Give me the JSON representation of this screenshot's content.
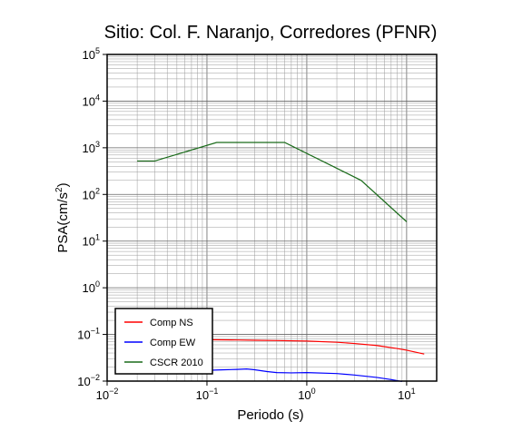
{
  "chart_data": {
    "type": "line",
    "title": "Sitio: Col. F. Naranjo, Corredores (PFNR)",
    "xlabel": "Periodo (s)",
    "ylabel_base": "PSA(cm/s",
    "ylabel_sup": "2",
    "ylabel_close": ")",
    "x_scale": "log",
    "y_scale": "log",
    "xlim": [
      0.01,
      20
    ],
    "ylim": [
      0.01,
      100000
    ],
    "grid": true,
    "legend_position": "bottom-left",
    "x_ticks": [
      {
        "value": 0.01,
        "base": "10",
        "exp": "−2"
      },
      {
        "value": 0.1,
        "base": "10",
        "exp": "−1"
      },
      {
        "value": 1,
        "base": "10",
        "exp": "0"
      },
      {
        "value": 10,
        "base": "10",
        "exp": "1"
      }
    ],
    "y_ticks": [
      {
        "value": 0.01,
        "base": "10",
        "exp": "−2"
      },
      {
        "value": 0.1,
        "base": "10",
        "exp": "−1"
      },
      {
        "value": 1,
        "base": "10",
        "exp": "0"
      },
      {
        "value": 10,
        "base": "10",
        "exp": "1"
      },
      {
        "value": 100,
        "base": "10",
        "exp": "2"
      },
      {
        "value": 1000,
        "base": "10",
        "exp": "3"
      },
      {
        "value": 10000,
        "base": "10",
        "exp": "4"
      },
      {
        "value": 100000,
        "base": "10",
        "exp": "5"
      }
    ],
    "series": [
      {
        "name": "Comp NS",
        "color": "#ff0000",
        "x": [
          0.02,
          0.03,
          0.05,
          0.1,
          0.2,
          0.3,
          0.5,
          1,
          2,
          3,
          5,
          8,
          10,
          15
        ],
        "y": [
          0.08,
          0.08,
          0.078,
          0.077,
          0.076,
          0.075,
          0.074,
          0.072,
          0.068,
          0.064,
          0.058,
          0.05,
          0.046,
          0.038
        ]
      },
      {
        "name": "Comp EW",
        "color": "#0000ff",
        "x": [
          0.02,
          0.03,
          0.05,
          0.1,
          0.15,
          0.2,
          0.25,
          0.3,
          0.4,
          0.5,
          0.7,
          1,
          2,
          3,
          5,
          7,
          9
        ],
        "y": [
          0.016,
          0.016,
          0.0165,
          0.017,
          0.0175,
          0.0178,
          0.0182,
          0.0175,
          0.016,
          0.0152,
          0.015,
          0.0152,
          0.0145,
          0.0135,
          0.012,
          0.0108,
          0.0098
        ]
      },
      {
        "name": "CSCR 2010",
        "color": "#1a6b1a",
        "x": [
          0.02,
          0.03,
          0.125,
          0.6,
          3.5,
          10
        ],
        "y": [
          520,
          520,
          1300,
          1300,
          200,
          26
        ]
      }
    ]
  }
}
